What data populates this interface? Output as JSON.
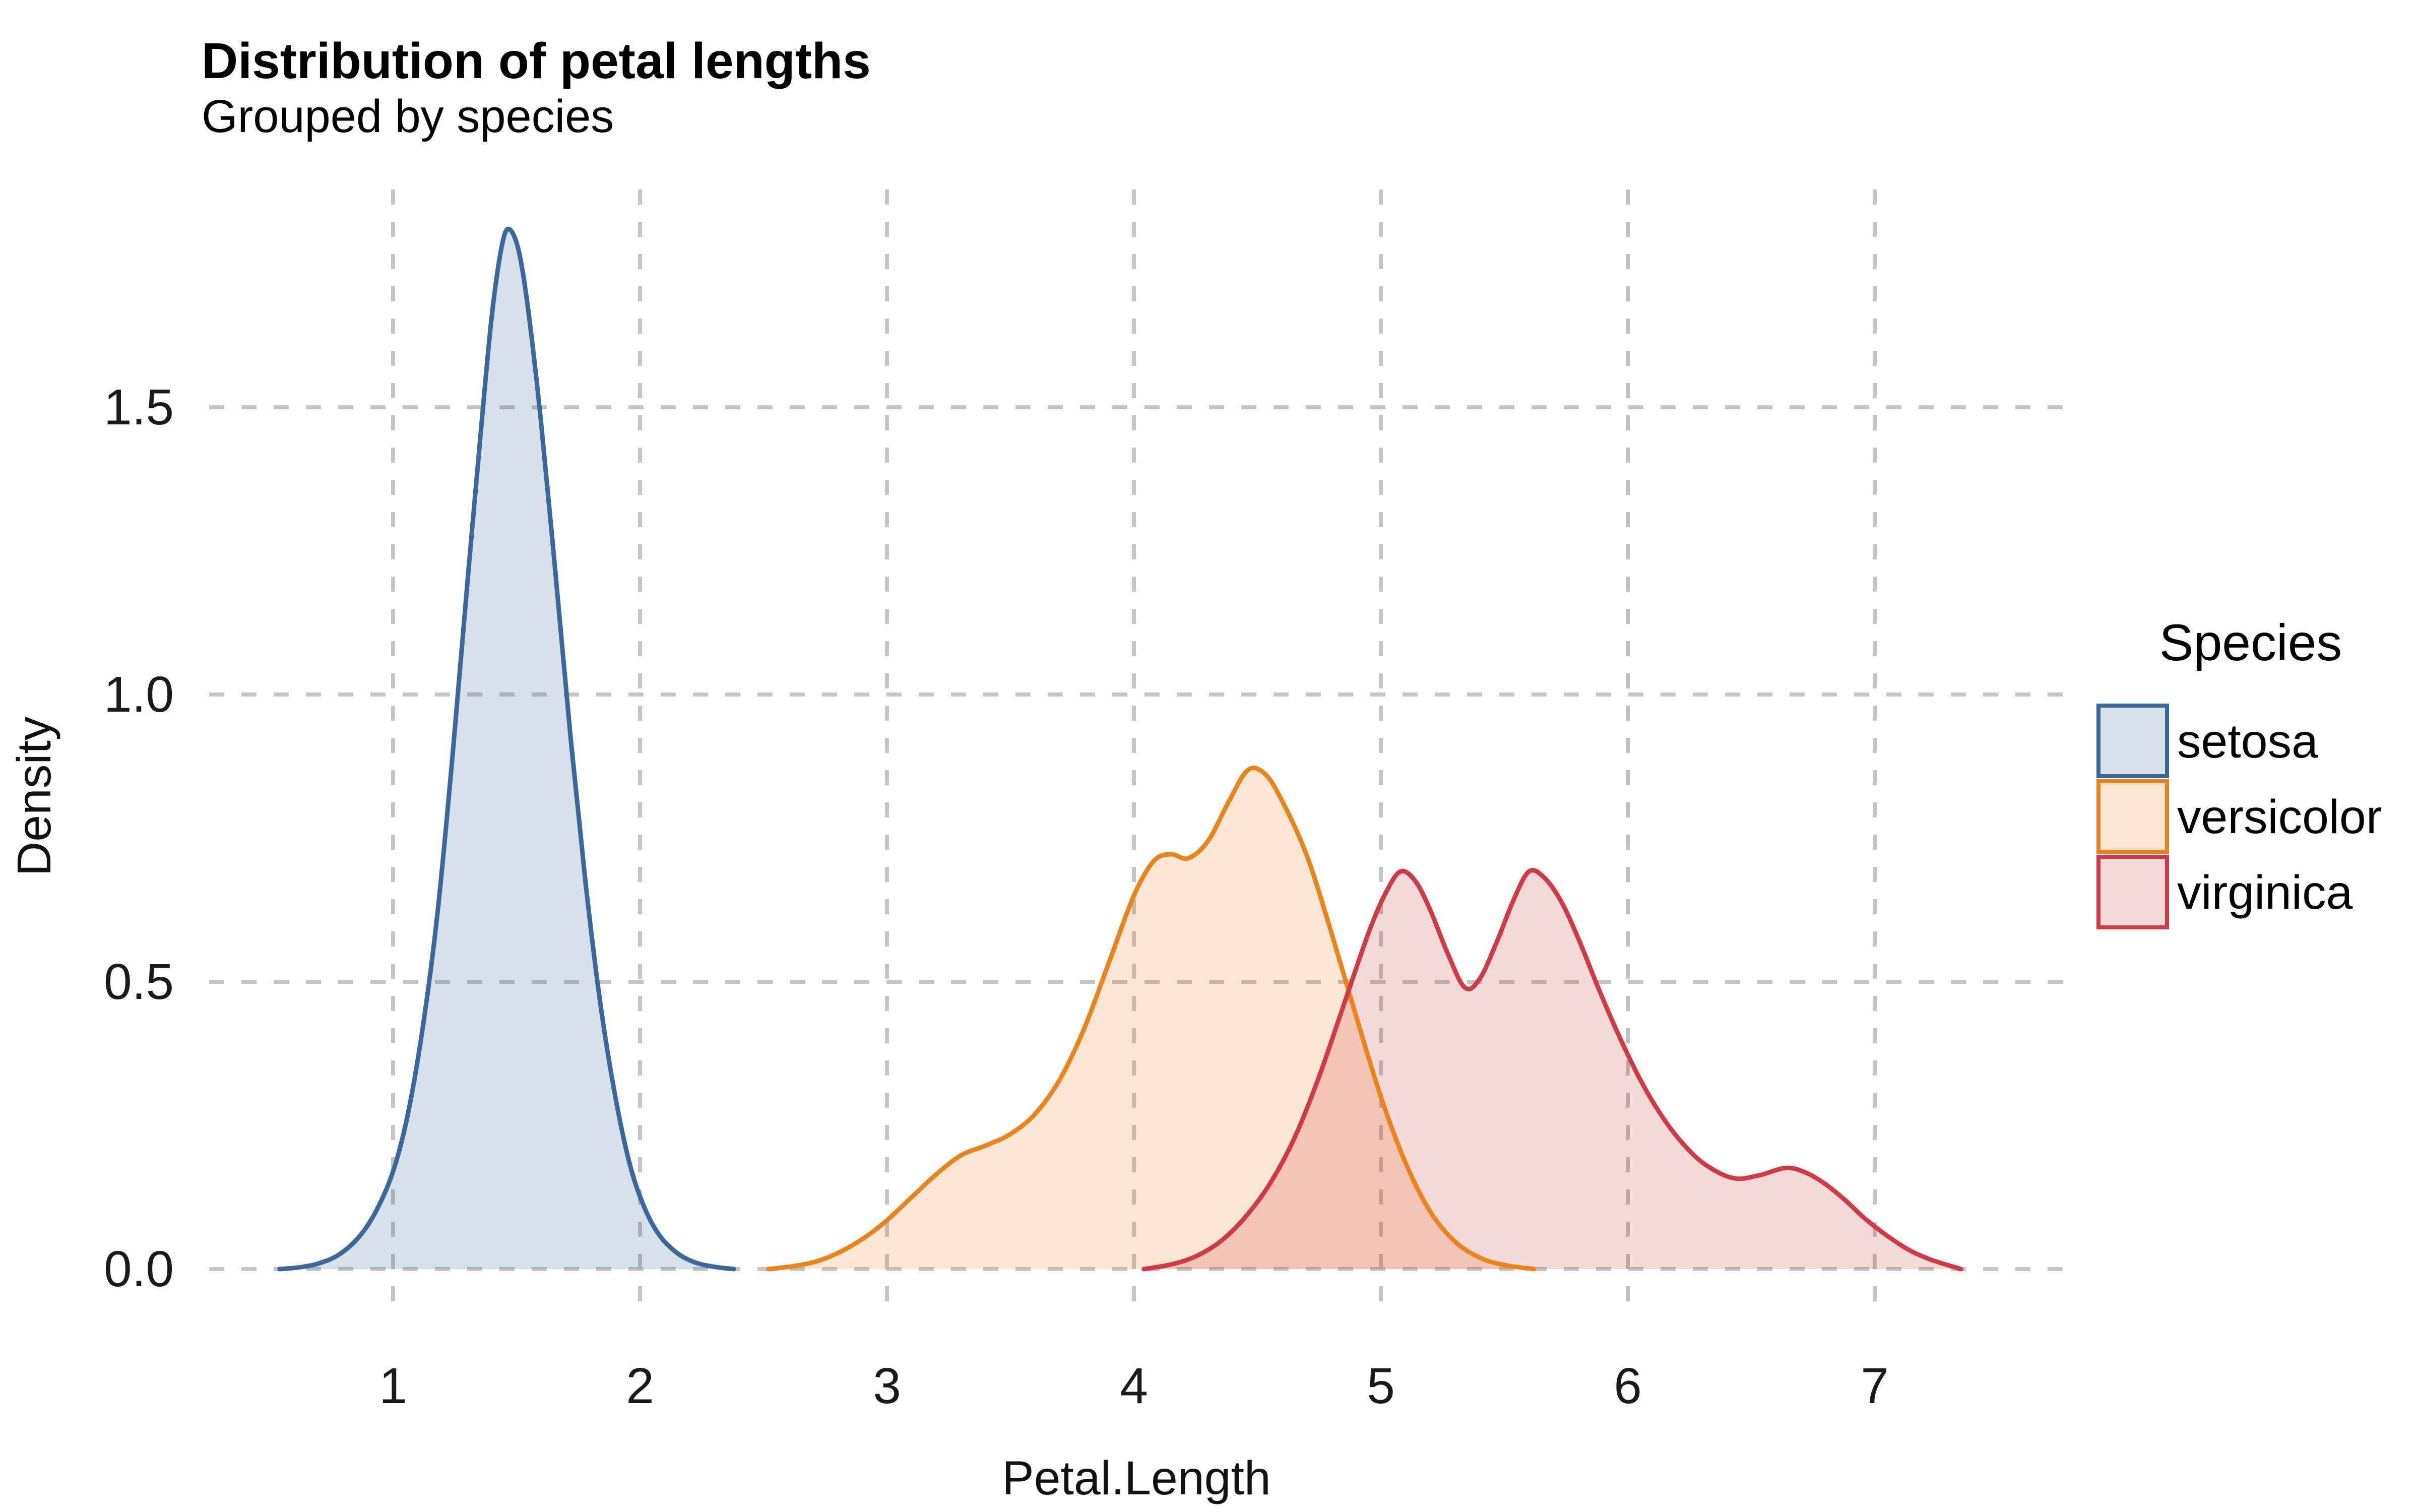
{
  "header": {
    "title": "Distribution of petal lengths",
    "subtitle": "Grouped by species"
  },
  "axes": {
    "x": {
      "label": "Petal.Length",
      "tick_values": [
        1,
        2,
        3,
        4,
        5,
        6,
        7
      ],
      "tick_labels": [
        "1",
        "2",
        "3",
        "4",
        "5",
        "6",
        "7"
      ]
    },
    "y": {
      "label": "Density",
      "tick_values": [
        0,
        0.5,
        1.0,
        1.5
      ],
      "tick_labels": [
        "0.0",
        "0.5",
        "1.0",
        "1.5"
      ]
    }
  },
  "legend": {
    "title": "Species",
    "items": [
      {
        "label": "setosa",
        "stroke": "#3D6699",
        "fill_opacity": 0.2
      },
      {
        "label": "versicolor",
        "stroke": "#E8831E",
        "fill_opacity": 0.2
      },
      {
        "label": "virginica",
        "stroke": "#CE3B46",
        "fill_opacity": 0.2
      }
    ]
  },
  "colors": {
    "grid": "#C4C4C4",
    "background": "#FFFFFF",
    "setosa": "#3D6699",
    "versicolor": "#E8831E",
    "virginica": "#CE3B46"
  },
  "chart_data": {
    "type": "area",
    "subtype": "kernel-density",
    "title": "Distribution of petal lengths",
    "subtitle": "Grouped by species",
    "xlabel": "Petal.Length",
    "ylabel": "Density",
    "xlim": [
      0.25,
      7.75
    ],
    "ylim": [
      0,
      1.9
    ],
    "x_ticks": [
      1,
      2,
      3,
      4,
      5,
      6,
      7
    ],
    "y_ticks": [
      0,
      0.5,
      1.0,
      1.5
    ],
    "grid": "dashed major gridlines only",
    "legend_position": "right",
    "legend_title": "Species",
    "series": [
      {
        "name": "setosa",
        "color": "#3D6699",
        "fill_opacity": 0.2,
        "peak": {
          "x": 1.47,
          "density": 1.81
        },
        "points": [
          [
            0.54,
            0
          ],
          [
            0.62,
            0.003
          ],
          [
            0.7,
            0.01
          ],
          [
            0.78,
            0.025
          ],
          [
            0.86,
            0.055
          ],
          [
            0.93,
            0.1
          ],
          [
            1.0,
            0.17
          ],
          [
            1.06,
            0.27
          ],
          [
            1.12,
            0.42
          ],
          [
            1.18,
            0.62
          ],
          [
            1.24,
            0.89
          ],
          [
            1.3,
            1.19
          ],
          [
            1.36,
            1.48
          ],
          [
            1.4,
            1.66
          ],
          [
            1.44,
            1.78
          ],
          [
            1.47,
            1.81
          ],
          [
            1.51,
            1.77
          ],
          [
            1.55,
            1.66
          ],
          [
            1.6,
            1.47
          ],
          [
            1.66,
            1.2
          ],
          [
            1.72,
            0.92
          ],
          [
            1.78,
            0.67
          ],
          [
            1.84,
            0.46
          ],
          [
            1.9,
            0.3
          ],
          [
            1.96,
            0.18
          ],
          [
            2.02,
            0.105
          ],
          [
            2.08,
            0.058
          ],
          [
            2.15,
            0.028
          ],
          [
            2.22,
            0.012
          ],
          [
            2.3,
            0.004
          ],
          [
            2.38,
            0
          ]
        ]
      },
      {
        "name": "versicolor",
        "color": "#E8831E",
        "fill_opacity": 0.2,
        "peak": {
          "x": 4.46,
          "density": 0.87
        },
        "points": [
          [
            2.52,
            0
          ],
          [
            2.62,
            0.005
          ],
          [
            2.72,
            0.014
          ],
          [
            2.82,
            0.032
          ],
          [
            2.92,
            0.058
          ],
          [
            3.0,
            0.085
          ],
          [
            3.1,
            0.125
          ],
          [
            3.2,
            0.165
          ],
          [
            3.3,
            0.198
          ],
          [
            3.4,
            0.215
          ],
          [
            3.5,
            0.235
          ],
          [
            3.6,
            0.27
          ],
          [
            3.7,
            0.33
          ],
          [
            3.8,
            0.42
          ],
          [
            3.9,
            0.535
          ],
          [
            4.0,
            0.65
          ],
          [
            4.08,
            0.71
          ],
          [
            4.15,
            0.722
          ],
          [
            4.22,
            0.715
          ],
          [
            4.3,
            0.745
          ],
          [
            4.38,
            0.81
          ],
          [
            4.46,
            0.868
          ],
          [
            4.53,
            0.862
          ],
          [
            4.6,
            0.815
          ],
          [
            4.7,
            0.72
          ],
          [
            4.8,
            0.585
          ],
          [
            4.9,
            0.44
          ],
          [
            5.0,
            0.3
          ],
          [
            5.1,
            0.185
          ],
          [
            5.2,
            0.1
          ],
          [
            5.3,
            0.048
          ],
          [
            5.4,
            0.02
          ],
          [
            5.5,
            0.007
          ],
          [
            5.62,
            0
          ]
        ]
      },
      {
        "name": "virginica",
        "color": "#CE3B46",
        "fill_opacity": 0.2,
        "peak": {
          "x": 5.08,
          "density": 0.69
        },
        "points": [
          [
            4.04,
            0
          ],
          [
            4.15,
            0.008
          ],
          [
            4.25,
            0.022
          ],
          [
            4.35,
            0.048
          ],
          [
            4.45,
            0.09
          ],
          [
            4.55,
            0.148
          ],
          [
            4.65,
            0.228
          ],
          [
            4.75,
            0.335
          ],
          [
            4.85,
            0.46
          ],
          [
            4.95,
            0.585
          ],
          [
            5.02,
            0.655
          ],
          [
            5.08,
            0.692
          ],
          [
            5.14,
            0.675
          ],
          [
            5.2,
            0.625
          ],
          [
            5.27,
            0.55
          ],
          [
            5.34,
            0.49
          ],
          [
            5.4,
            0.505
          ],
          [
            5.47,
            0.57
          ],
          [
            5.54,
            0.645
          ],
          [
            5.6,
            0.692
          ],
          [
            5.66,
            0.682
          ],
          [
            5.73,
            0.64
          ],
          [
            5.8,
            0.575
          ],
          [
            5.88,
            0.49
          ],
          [
            5.96,
            0.41
          ],
          [
            6.05,
            0.33
          ],
          [
            6.14,
            0.265
          ],
          [
            6.23,
            0.215
          ],
          [
            6.32,
            0.18
          ],
          [
            6.43,
            0.158
          ],
          [
            6.53,
            0.163
          ],
          [
            6.64,
            0.176
          ],
          [
            6.72,
            0.168
          ],
          [
            6.8,
            0.148
          ],
          [
            6.88,
            0.12
          ],
          [
            6.96,
            0.088
          ],
          [
            7.05,
            0.058
          ],
          [
            7.14,
            0.033
          ],
          [
            7.23,
            0.016
          ],
          [
            7.35,
            0
          ]
        ]
      }
    ]
  }
}
